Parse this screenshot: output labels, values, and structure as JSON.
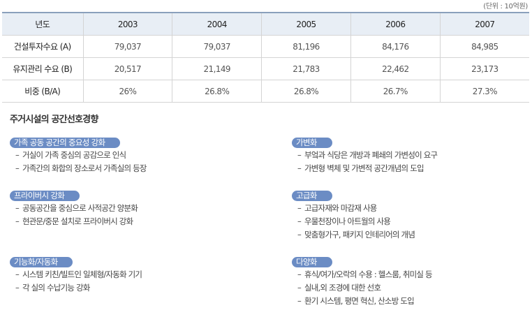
{
  "unit_note": "(단위 : 10억원)",
  "table": {
    "header": [
      "년도",
      "2003",
      "2004",
      "2005",
      "2006",
      "2007"
    ],
    "rows": [
      {
        "label": "건설투자수요 (A)",
        "values": [
          "79,037",
          "79,037",
          "81,196",
          "84,176",
          "84,985"
        ]
      },
      {
        "label": "유지관리 수요 (B)",
        "values": [
          "20,517",
          "21,149",
          "21,783",
          "22,462",
          "23,173"
        ]
      },
      {
        "label": "비중 (B/A)",
        "values": [
          "26%",
          "26.8%",
          "26.8%",
          "26.7%",
          "27.3%"
        ]
      }
    ]
  },
  "section_title": "주거시설의 공간선호경향",
  "dash": "–",
  "accent_color": "#6b8cc4",
  "left_groups": [
    {
      "title": "가족 공동 공간의 중요성 강화",
      "items": [
        "거실이 가족 중심의 공감으로 인식",
        "가족간의 화합의 장소로서 가족실의 등장"
      ]
    },
    {
      "title": "프라이버시 강화",
      "items": [
        "공동공간을 중심으로 사적공간 양분화",
        "현관문/중문 설치로 프라이버시 강화"
      ]
    },
    {
      "title": "기능화/자동화",
      "items": [
        "시스템 키친/빌트인 일체형/자동화 기기",
        "각 실의 수납기능 강화"
      ]
    }
  ],
  "right_groups": [
    {
      "title": "가변화",
      "items": [
        "부엌과 식당은 개방과 폐쇄의 가변성이 요구",
        "가변형 벽체 및 가변적 공간개념의 도입"
      ]
    },
    {
      "title": "고급화",
      "items": [
        "고급자재와 마감재 사용",
        "우물천장이나 아트월의 사용",
        "맞춤형가구, 패키지 인테리어의 개념"
      ]
    },
    {
      "title": "다양화",
      "items": [
        "휴식/여가/오락의 수용 : 헬스룸, 취미실 등",
        "실내,외 조경에 대한 선호",
        "환기 시스템, 평면 혁신, 산소방 도입"
      ]
    }
  ]
}
